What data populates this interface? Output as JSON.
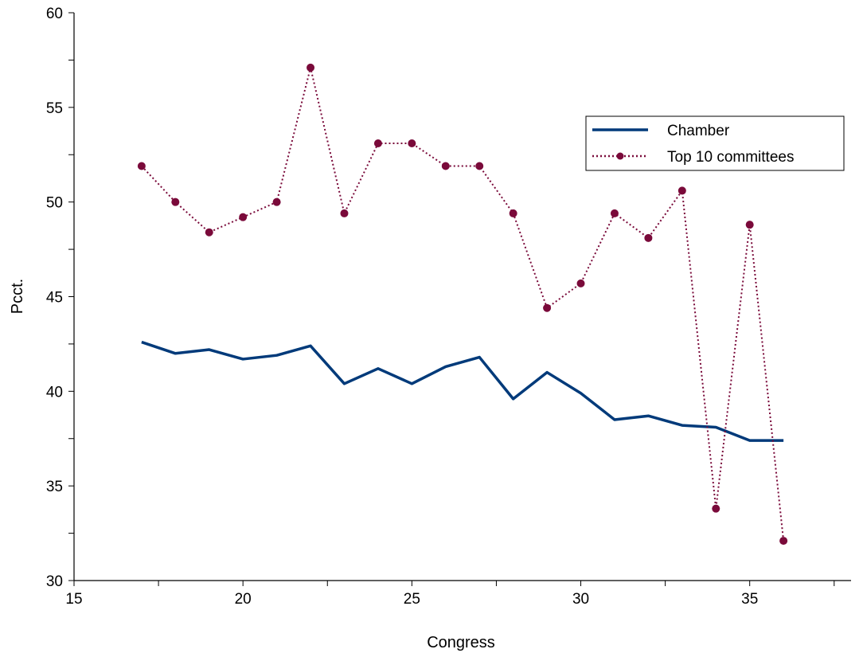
{
  "chart_data": {
    "type": "line",
    "title": "",
    "xlabel": "Congress",
    "ylabel": "Pcct.",
    "xlim": [
      15,
      38
    ],
    "ylim": [
      30,
      60
    ],
    "x_ticks": [
      15,
      20,
      25,
      30,
      35
    ],
    "y_ticks": [
      30,
      35,
      40,
      45,
      50,
      55,
      60
    ],
    "grid": false,
    "legend_position": "top-right",
    "x": [
      17,
      18,
      19,
      20,
      21,
      22,
      23,
      24,
      25,
      26,
      27,
      28,
      29,
      30,
      31,
      32,
      33,
      34,
      35,
      36
    ],
    "series": [
      {
        "name": "Chamber",
        "style": "solid",
        "color": "#003a7a",
        "values": [
          42.6,
          42.0,
          42.2,
          41.7,
          41.9,
          42.4,
          40.4,
          41.2,
          40.4,
          41.3,
          41.8,
          39.6,
          41.0,
          39.9,
          38.5,
          38.7,
          38.2,
          38.1,
          37.4,
          37.4
        ]
      },
      {
        "name": "Top 10 committees",
        "style": "dotted-markers",
        "color": "#7a0a3a",
        "values": [
          51.9,
          50.0,
          48.4,
          49.2,
          50.0,
          57.1,
          49.4,
          53.1,
          53.1,
          51.9,
          51.9,
          49.4,
          44.4,
          45.7,
          49.4,
          48.1,
          50.6,
          33.8,
          48.8,
          32.1
        ]
      }
    ]
  }
}
